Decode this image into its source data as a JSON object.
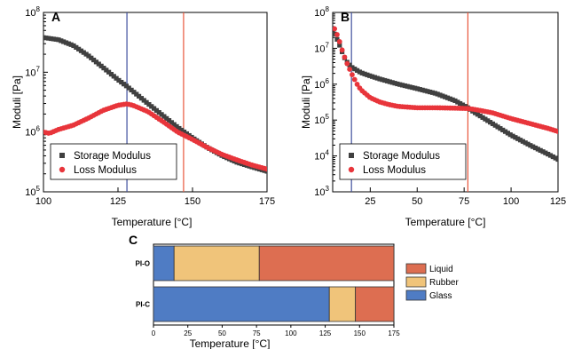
{
  "colors": {
    "storage": "#404040",
    "loss": "#e8353b",
    "vline_blue": "#3f4f9e",
    "vline_red": "#e8563b",
    "glass": "#4f7cc4",
    "rubber": "#f0c47a",
    "liquid": "#dd6e51"
  },
  "chart_data": [
    {
      "panel": "A",
      "type": "scatter",
      "xlabel": "Temperature [°C]",
      "ylabel": "Moduli [Pa]",
      "xlim": [
        100,
        175
      ],
      "ylim": [
        100000,
        100000000
      ],
      "yscale": "log",
      "xticks": [
        "100",
        "125",
        "150",
        "175"
      ],
      "yticks": [
        "10^5",
        "10^6",
        "10^7",
        "10^8"
      ],
      "legend": {
        "position": "bottom-left",
        "entries": [
          "Storage Modulus",
          "Loss Modulus"
        ]
      },
      "vlines": [
        {
          "x": 128,
          "color": "blue"
        },
        {
          "x": 147,
          "color": "red"
        }
      ],
      "series": [
        {
          "name": "Storage Modulus",
          "marker": "square",
          "x": [
            100,
            105,
            110,
            115,
            120,
            125,
            128,
            130,
            135,
            140,
            145,
            150,
            155,
            160,
            165,
            170,
            175
          ],
          "y": [
            38000000,
            35000000,
            28000000,
            19000000,
            12000000,
            7500000,
            5800000,
            4800000,
            3000000,
            1900000,
            1200000,
            800000,
            550000,
            400000,
            310000,
            260000,
            220000
          ]
        },
        {
          "name": "Loss Modulus",
          "marker": "circle",
          "x": [
            100,
            102,
            105,
            110,
            115,
            120,
            125,
            128,
            130,
            135,
            140,
            145,
            150,
            155,
            160,
            165,
            170,
            175
          ],
          "y": [
            1000000,
            950000,
            1100000,
            1300000,
            1700000,
            2300000,
            2800000,
            2950000,
            2800000,
            2200000,
            1500000,
            1000000,
            750000,
            550000,
            420000,
            340000,
            280000,
            240000
          ]
        }
      ]
    },
    {
      "panel": "B",
      "type": "scatter",
      "xlabel": "Temperature [°C]",
      "ylabel": "Moduli [Pa]",
      "xlim": [
        5,
        125
      ],
      "ylim": [
        1000,
        100000000
      ],
      "yscale": "log",
      "xticks": [
        "25",
        "50",
        "75",
        "100",
        "125"
      ],
      "yticks": [
        "10^3",
        "10^4",
        "10^5",
        "10^6",
        "10^7",
        "10^8"
      ],
      "legend": {
        "position": "bottom-left",
        "entries": [
          "Storage Modulus",
          "Loss Modulus"
        ]
      },
      "vlines": [
        {
          "x": 15,
          "color": "blue"
        },
        {
          "x": 77,
          "color": "red"
        }
      ],
      "series": [
        {
          "name": "Storage Modulus",
          "marker": "square",
          "x": [
            6,
            8,
            10,
            12,
            15,
            20,
            25,
            30,
            40,
            50,
            60,
            70,
            77,
            80,
            90,
            100,
            110,
            120,
            125
          ],
          "y": [
            25000000,
            15000000,
            8000000,
            4500000,
            3000000,
            2100000,
            1700000,
            1400000,
            1000000,
            750000,
            550000,
            350000,
            220000,
            170000,
            80000,
            38000,
            20000,
            11000,
            8000
          ]
        },
        {
          "name": "Loss Modulus",
          "marker": "circle",
          "x": [
            6,
            8,
            10,
            12,
            15,
            18,
            20,
            25,
            30,
            35,
            40,
            50,
            60,
            70,
            77,
            80,
            90,
            100,
            110,
            120,
            125
          ],
          "y": [
            35000000,
            20000000,
            9000000,
            4500000,
            2000000,
            1000000,
            700000,
            420000,
            320000,
            270000,
            240000,
            220000,
            220000,
            215000,
            210000,
            200000,
            160000,
            110000,
            80000,
            58000,
            48000
          ]
        }
      ]
    },
    {
      "panel": "C",
      "type": "bar",
      "orientation": "horizontal",
      "stacked": true,
      "xlabel": "Temperature [°C]",
      "xlim": [
        0,
        175
      ],
      "xticks": [
        "0",
        "25",
        "50",
        "75",
        "100",
        "125",
        "150",
        "175"
      ],
      "categories": [
        "PI-O",
        "PI-C"
      ],
      "legend": {
        "position": "right",
        "entries": [
          "Liquid",
          "Rubber",
          "Glass"
        ]
      },
      "series": [
        {
          "name": "Glass",
          "values": [
            15,
            128
          ]
        },
        {
          "name": "Rubber",
          "values": [
            62,
            19
          ]
        },
        {
          "name": "Liquid",
          "values": [
            98,
            28
          ]
        }
      ]
    }
  ]
}
